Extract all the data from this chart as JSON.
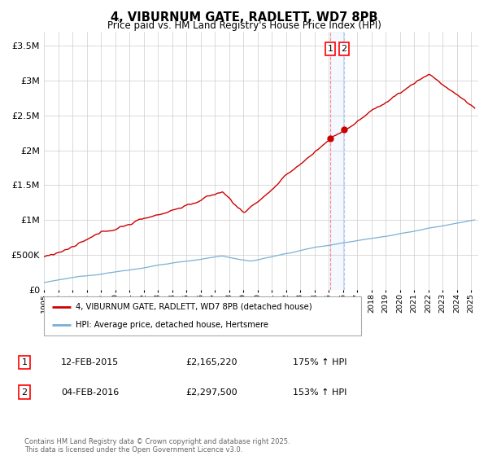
{
  "title": "4, VIBURNUM GATE, RADLETT, WD7 8PB",
  "subtitle": "Price paid vs. HM Land Registry's House Price Index (HPI)",
  "ylabel_ticks": [
    "£0",
    "£500K",
    "£1M",
    "£1.5M",
    "£2M",
    "£2.5M",
    "£3M",
    "£3.5M"
  ],
  "ytick_values": [
    0,
    500000,
    1000000,
    1500000,
    2000000,
    2500000,
    3000000,
    3500000
  ],
  "ylim": [
    0,
    3700000
  ],
  "xlim_start": 1995.0,
  "xlim_end": 2025.5,
  "red_line_color": "#cc0000",
  "blue_line_color": "#7ab0d4",
  "vline1_x": 2015.1,
  "vline2_x": 2016.08,
  "legend_red_label": "4, VIBURNUM GATE, RADLETT, WD7 8PB (detached house)",
  "legend_blue_label": "HPI: Average price, detached house, Hertsmere",
  "annotation1_date": "12-FEB-2015",
  "annotation1_price": "£2,165,220",
  "annotation1_hpi": "175% ↑ HPI",
  "annotation2_date": "04-FEB-2016",
  "annotation2_price": "£2,297,500",
  "annotation2_hpi": "153% ↑ HPI",
  "footer": "Contains HM Land Registry data © Crown copyright and database right 2025.\nThis data is licensed under the Open Government Licence v3.0.",
  "background_color": "#ffffff",
  "grid_color": "#cccccc",
  "sale1_x": 2015.1,
  "sale1_y": 2165220,
  "sale2_x": 2016.08,
  "sale2_y": 2297500
}
